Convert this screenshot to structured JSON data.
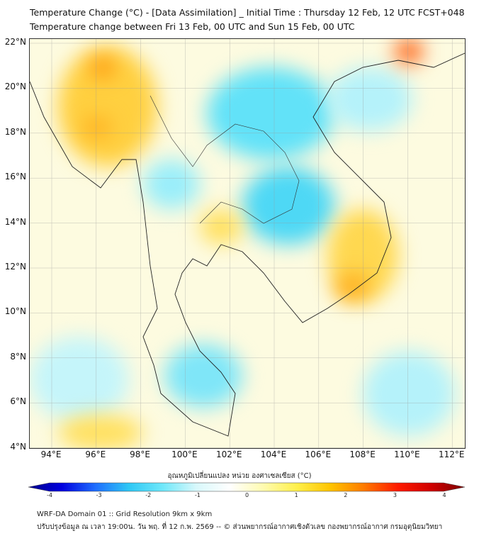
{
  "header": {
    "title": "Temperature Change (°C) - [Data Assimilation] _ Initial Time : Thursday 12 Feb, 12 UTC FCST+048",
    "subtitle": "Temperature change between Fri 13 Feb, 00 UTC and Sun 15 Feb, 00 UTC"
  },
  "map": {
    "lat_labels": [
      "22°N",
      "20°N",
      "18°N",
      "16°N",
      "14°N",
      "12°N",
      "10°N",
      "8°N",
      "6°N",
      "4°N"
    ],
    "lon_labels": [
      "94°E",
      "96°E",
      "98°E",
      "100°E",
      "102°E",
      "104°E",
      "106°E",
      "108°E",
      "110°E",
      "112°E"
    ]
  },
  "colorbar": {
    "label": "อุณหภูมิเปลี่ยนแปลง หน่วย องศาเซลเซียส (°C)",
    "ticks": [
      "-4",
      "-3",
      "-2",
      "-1",
      "0",
      "1",
      "2",
      "3",
      "4"
    ],
    "min": -4,
    "max": 4,
    "colors": [
      "#00008b",
      "#0000e0",
      "#1e6eff",
      "#2ec8f5",
      "#6fe8fa",
      "#d8f8fb",
      "#ffffff",
      "#fffbb0",
      "#fff04a",
      "#ffc400",
      "#ff7a00",
      "#ff1a00",
      "#d00000",
      "#7a0000"
    ]
  },
  "footer": {
    "line1": "WRF-DA Domain 01 :: Grid Resolution 9km x 9km",
    "line2": "ปรับปรุงข้อมูล ณ เวลา 19:00น. วัน พฤ. ที่ 12 ก.พ. 2569 -- © ส่วนพยากรณ์อากาศเชิงตัวเลข กองพยากรณ์อากาศ กรมอุตุนิยมวิทยา"
  }
}
